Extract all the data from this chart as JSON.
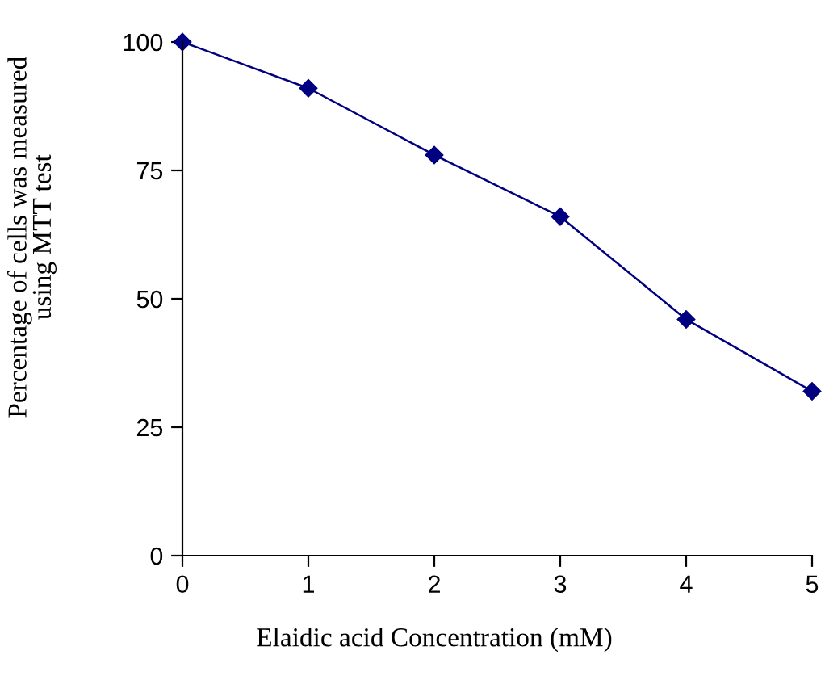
{
  "chart_data": {
    "type": "line",
    "xlabel": "Elaidic acid Concentration (mM)",
    "ylabel": "Percentage of cells was measured\nusing MTT test",
    "x": [
      0,
      1,
      2,
      3,
      4,
      5
    ],
    "series": [
      {
        "color": "#000080",
        "values": [
          100,
          91,
          78,
          66,
          46,
          32
        ]
      }
    ],
    "xlim": [
      0,
      5
    ],
    "xticks": [
      0,
      1,
      2,
      3,
      4,
      5
    ],
    "ylim": [
      0,
      100
    ],
    "yticks": [
      0,
      25,
      50,
      75,
      100
    ],
    "grid": false,
    "marker": "diamond",
    "line_style": "solid"
  }
}
